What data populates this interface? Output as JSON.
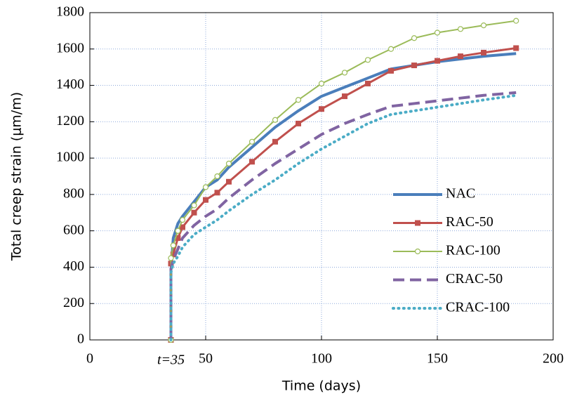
{
  "chart_data": {
    "type": "line",
    "xlabel": "Time (days)",
    "ylabel": "Total creep strain (μm/m)",
    "annotation": {
      "text": "t=35",
      "x": 35
    },
    "x": [
      35,
      35,
      36,
      38,
      40,
      45,
      50,
      55,
      60,
      70,
      80,
      90,
      100,
      110,
      120,
      130,
      140,
      150,
      160,
      170,
      184
    ],
    "series": [
      {
        "name": "NAC",
        "color": "#4a7ebb",
        "width": 4,
        "values": [
          0,
          380,
          560,
          640,
          680,
          760,
          840,
          880,
          950,
          1060,
          1170,
          1260,
          1340,
          1390,
          1440,
          1490,
          1510,
          1530,
          1545,
          1560,
          1575
        ]
      },
      {
        "name": "RAC-50",
        "color": "#c0504d",
        "width": 3,
        "marker": "square",
        "values": [
          0,
          420,
          470,
          560,
          620,
          700,
          770,
          810,
          870,
          980,
          1090,
          1190,
          1270,
          1340,
          1410,
          1480,
          1510,
          1535,
          1560,
          1580,
          1605
        ]
      },
      {
        "name": "RAC-100",
        "color": "#9bbb59",
        "width": 2,
        "marker": "circle",
        "values": [
          0,
          450,
          520,
          600,
          660,
          740,
          840,
          900,
          970,
          1090,
          1210,
          1320,
          1410,
          1470,
          1540,
          1600,
          1660,
          1690,
          1710,
          1730,
          1755
        ]
      },
      {
        "name": "CRAC-50",
        "color": "#8064a2",
        "width": 4,
        "dash": "dashed",
        "values": [
          0,
          390,
          440,
          500,
          560,
          630,
          680,
          720,
          780,
          880,
          970,
          1050,
          1130,
          1190,
          1240,
          1285,
          1300,
          1315,
          1330,
          1345,
          1360
        ]
      },
      {
        "name": "CRAC-100",
        "color": "#4bacc6",
        "width": 4,
        "dash": "dotted",
        "values": [
          0,
          370,
          420,
          460,
          510,
          580,
          620,
          660,
          710,
          800,
          880,
          970,
          1050,
          1120,
          1190,
          1240,
          1260,
          1280,
          1300,
          1320,
          1345
        ]
      }
    ],
    "xlim": [
      0,
      200
    ],
    "xticks": [
      0,
      50,
      100,
      150,
      200
    ],
    "ylim": [
      0,
      1800
    ],
    "yticks": [
      0,
      200,
      400,
      600,
      800,
      1000,
      1200,
      1400,
      1600,
      1800
    ],
    "grid": true
  }
}
